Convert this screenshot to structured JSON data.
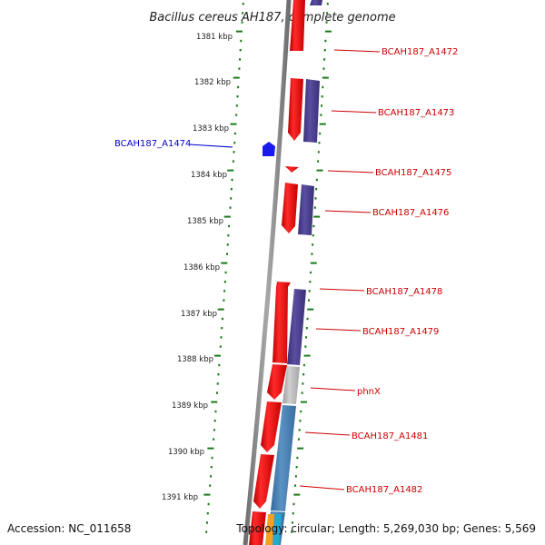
{
  "title": "Bacillus cereus AH187, complete genome",
  "footer": {
    "accession": "Accession: NC_011658",
    "topology": "Topology: circular; Length: 5,269,030 bp; Genes: 5,569"
  },
  "ticks": [
    "1381 kbp",
    "1382 kbp",
    "1383 kbp",
    "1384 kbp",
    "1385 kbp",
    "1386 kbp",
    "1387 kbp",
    "1388 kbp",
    "1389 kbp",
    "1390 kbp",
    "1391 kbp"
  ],
  "genes_plus": [
    "BCAH187_A1472",
    "BCAH187_A1473",
    "BCAH187_A1475",
    "BCAH187_A1476",
    "BCAH187_A1478",
    "BCAH187_A1479",
    "phnX",
    "BCAH187_A1481",
    "BCAH187_A1482"
  ],
  "genes_minus": [
    "BCAH187_A1474"
  ],
  "colors": {
    "cds": "#ee1111",
    "purple": "#4b3f8f",
    "gray": "#b8b8b8",
    "steel": "#4a7fb0",
    "minus_strand": "#1a1aee",
    "plus_label": "#cc0000",
    "minus_label": "#0000cc",
    "ticks": "#1a7a1a",
    "backbone": "#8a8a8a"
  }
}
